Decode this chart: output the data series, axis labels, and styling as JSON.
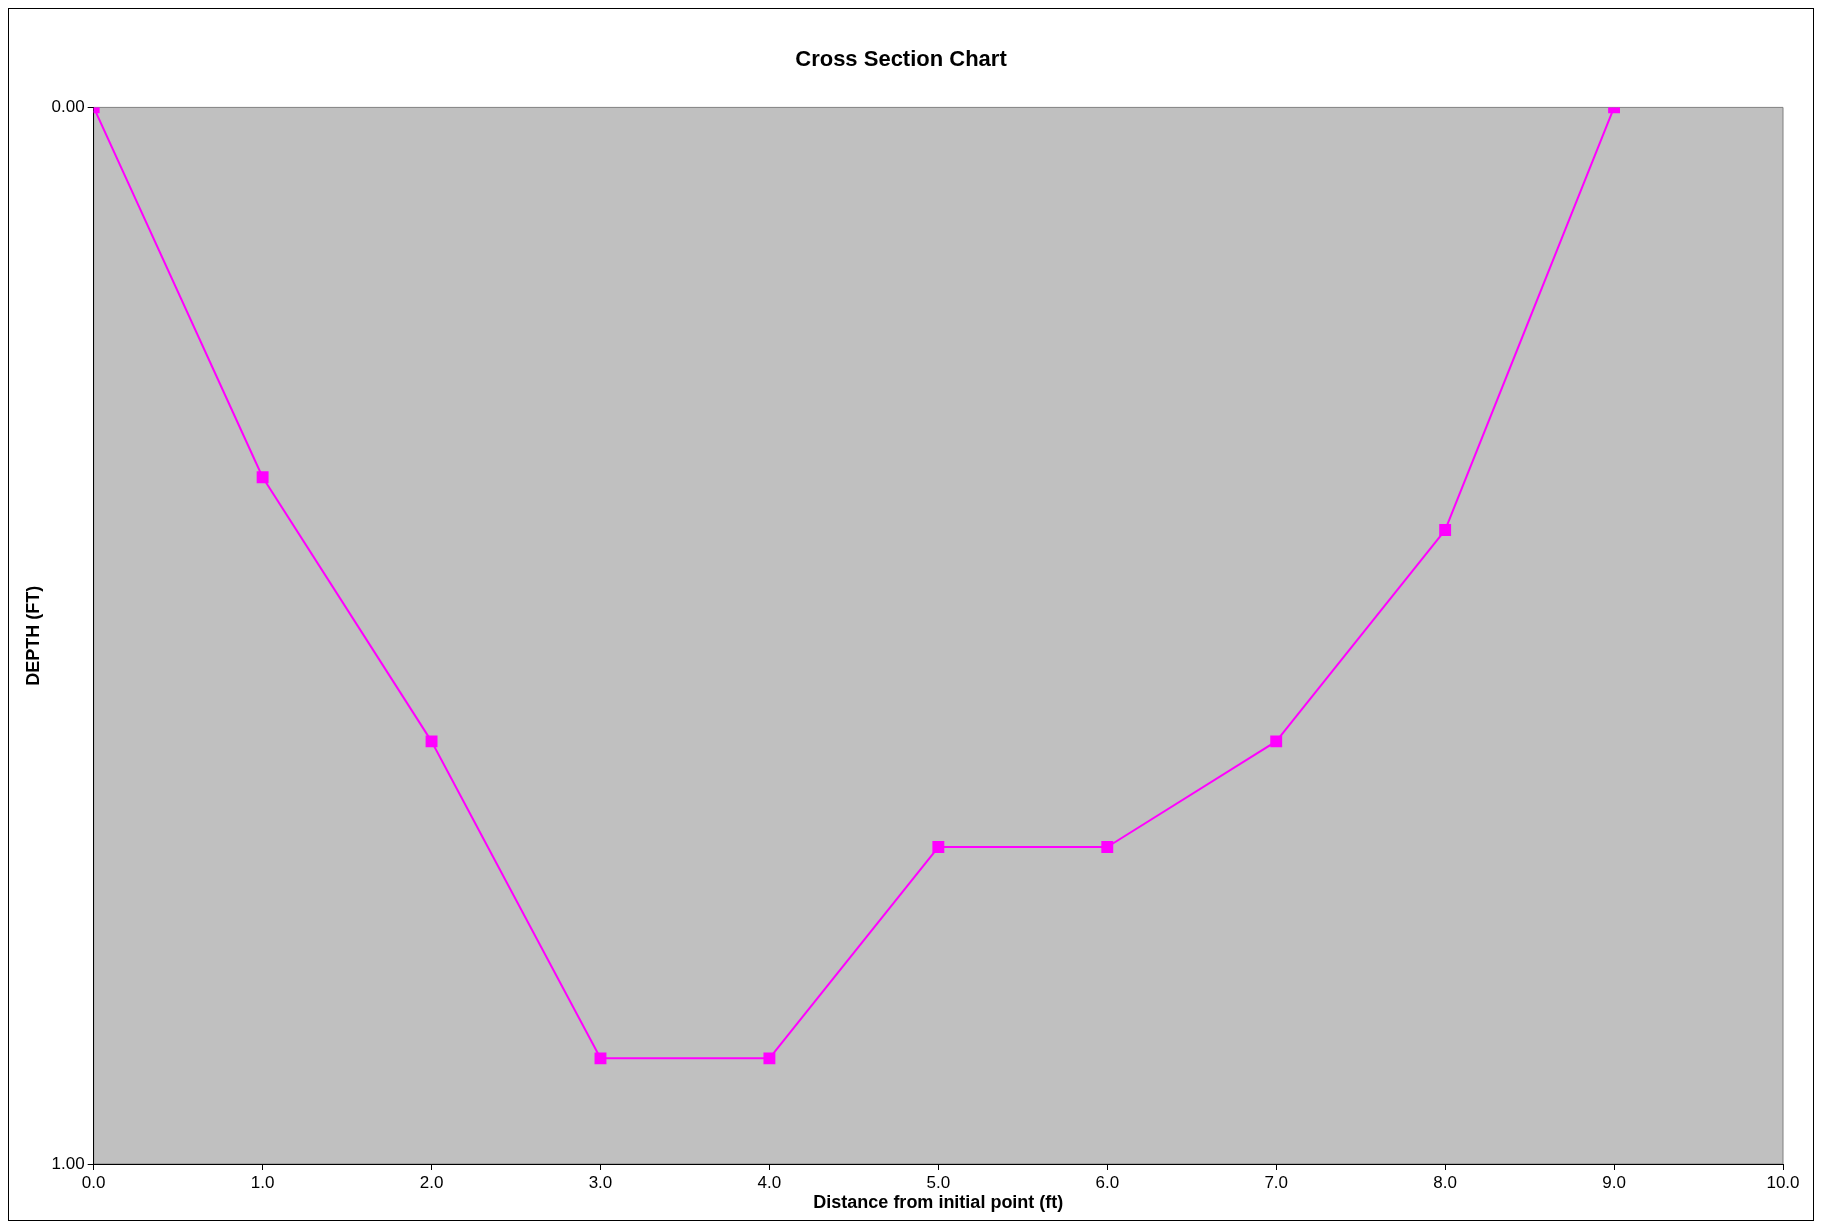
{
  "chart_data": {
    "type": "line",
    "title": "Cross Section Chart",
    "xlabel": "Distance from initial point (ft)",
    "ylabel": "DEPTH (FT)",
    "x": [
      0,
      1,
      2,
      3,
      4,
      5,
      6,
      7,
      8,
      9
    ],
    "series": [
      {
        "color": "#ff00ff",
        "values": [
          0,
          0.35,
          0.6,
          0.9,
          0.9,
          0.7,
          0.7,
          0.6,
          0.4,
          0
        ]
      }
    ],
    "xlim": [
      0,
      10
    ],
    "xticks": [
      {
        "value": 0,
        "label": "0.0"
      },
      {
        "value": 1,
        "label": "1.0"
      },
      {
        "value": 2,
        "label": "2.0"
      },
      {
        "value": 3,
        "label": "3.0"
      },
      {
        "value": 4,
        "label": "4.0"
      },
      {
        "value": 5,
        "label": "5.0"
      },
      {
        "value": 6,
        "label": "6.0"
      },
      {
        "value": 7,
        "label": "7.0"
      },
      {
        "value": 8,
        "label": "8.0"
      },
      {
        "value": 9,
        "label": "9.0"
      },
      {
        "value": 10,
        "label": "10.0"
      }
    ],
    "ylim": [
      1,
      0
    ],
    "yticks": [
      {
        "value": 0,
        "label": "0.00"
      },
      {
        "value": 1,
        "label": "1.00"
      }
    ],
    "grid": false,
    "legend": false,
    "marker": "square",
    "line_style": "solid"
  }
}
